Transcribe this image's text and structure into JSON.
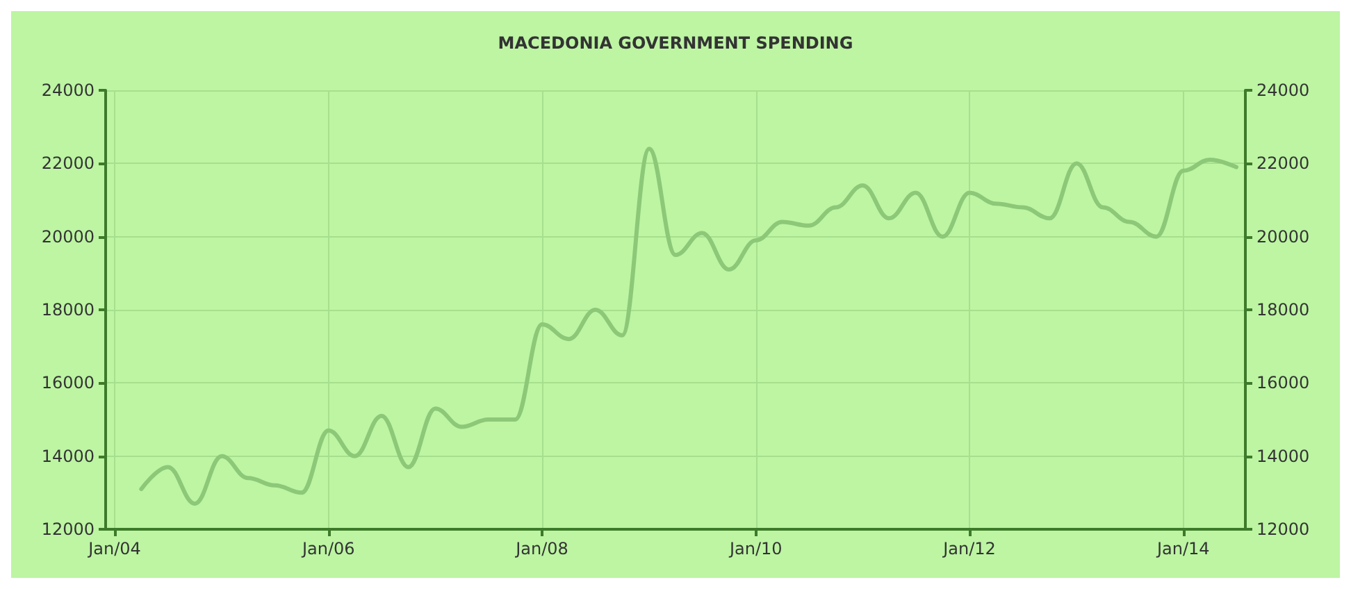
{
  "chart_data": {
    "type": "line",
    "title": "MACEDONIA GOVERNMENT SPENDING",
    "x": [
      "2004-04",
      "2004-07",
      "2004-10",
      "2005-01",
      "2005-04",
      "2005-07",
      "2005-10",
      "2006-01",
      "2006-04",
      "2006-07",
      "2006-10",
      "2007-01",
      "2007-04",
      "2007-07",
      "2007-10",
      "2008-01",
      "2008-04",
      "2008-07",
      "2008-10",
      "2009-01",
      "2009-04",
      "2009-07",
      "2009-10",
      "2010-01",
      "2010-04",
      "2010-07",
      "2010-10",
      "2011-01",
      "2011-04",
      "2011-07",
      "2011-10",
      "2012-01",
      "2012-04",
      "2012-07",
      "2012-10",
      "2013-01",
      "2013-04",
      "2013-07",
      "2013-10",
      "2014-01",
      "2014-04",
      "2014-07"
    ],
    "series": [
      {
        "color": "#8cc878",
        "values": [
          13100,
          13700,
          12700,
          14000,
          13400,
          13200,
          13000,
          14700,
          14000,
          15100,
          13700,
          15300,
          14800,
          15000,
          15000,
          17600,
          17200,
          18000,
          17300,
          22400,
          19500,
          20100,
          19100,
          19900,
          20400,
          20300,
          20800,
          21400,
          20500,
          21200,
          20000,
          21200,
          20900,
          20800,
          20500,
          22000,
          20800,
          20400,
          20000,
          21800,
          22100,
          21900
        ]
      }
    ],
    "xlim": [
      "2003-12",
      "2014-08"
    ],
    "xticks": [
      {
        "value": "2004-01",
        "label": "Jan/04"
      },
      {
        "value": "2006-01",
        "label": "Jan/06"
      },
      {
        "value": "2008-01",
        "label": "Jan/08"
      },
      {
        "value": "2010-01",
        "label": "Jan/10"
      },
      {
        "value": "2012-01",
        "label": "Jan/12"
      },
      {
        "value": "2014-01",
        "label": "Jan/14"
      }
    ],
    "ylim": [
      12000,
      24000
    ],
    "yticks": [
      12000,
      14000,
      16000,
      18000,
      20000,
      22000,
      24000
    ],
    "y2lim": [
      12000,
      24000
    ],
    "y2ticks": [
      12000,
      14000,
      16000,
      18000,
      20000,
      22000,
      24000
    ],
    "grid": true,
    "marker": "none",
    "line_style": "solid"
  }
}
